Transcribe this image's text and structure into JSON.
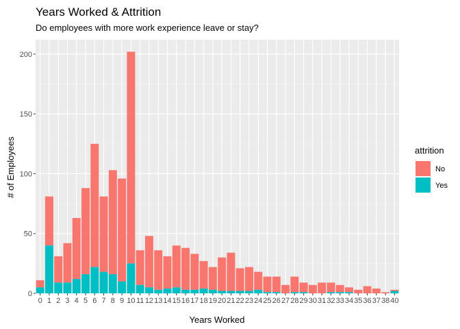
{
  "chart_data": {
    "type": "bar",
    "stacked": true,
    "title": "Years Worked & Attrition",
    "subtitle": "Do employees with more work experience leave or stay?",
    "xlabel": "Years Worked",
    "ylabel": "# of Employees",
    "ylim": [
      0,
      212
    ],
    "yticks": [
      0,
      50,
      100,
      150,
      200
    ],
    "grid": true,
    "legend": {
      "title": "attrition",
      "position": "right",
      "entries": [
        {
          "label": "No",
          "color": "#F8766D"
        },
        {
          "label": "Yes",
          "color": "#00BFC4"
        }
      ]
    },
    "categories": [
      "0",
      "1",
      "2",
      "3",
      "4",
      "5",
      "6",
      "7",
      "8",
      "9",
      "10",
      "11",
      "12",
      "13",
      "14",
      "15",
      "16",
      "17",
      "18",
      "19",
      "20",
      "21",
      "22",
      "23",
      "24",
      "25",
      "26",
      "27",
      "28",
      "29",
      "30",
      "31",
      "32",
      "33",
      "34",
      "35",
      "36",
      "37",
      "38",
      "40"
    ],
    "series": [
      {
        "name": "No",
        "color": "#F8766D",
        "values": [
          6,
          41,
          22,
          33,
          51,
          72,
          103,
          63,
          87,
          86,
          177,
          29,
          43,
          33,
          27,
          35,
          35,
          30,
          23,
          19,
          28,
          32,
          19,
          20,
          15,
          13,
          13,
          7,
          13,
          8,
          7,
          9,
          8,
          6,
          4,
          3,
          6,
          4,
          1,
          1
        ]
      },
      {
        "name": "Yes",
        "color": "#00BFC4",
        "values": [
          5,
          40,
          9,
          9,
          12,
          16,
          22,
          18,
          16,
          10,
          25,
          7,
          5,
          3,
          4,
          5,
          3,
          3,
          4,
          3,
          2,
          2,
          2,
          2,
          3,
          1,
          1,
          0,
          1,
          1,
          0,
          0,
          1,
          1,
          1,
          0,
          0,
          0,
          0,
          2
        ]
      }
    ]
  }
}
